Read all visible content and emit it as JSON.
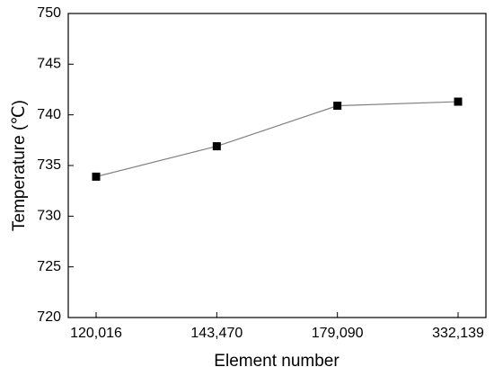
{
  "chart_data": {
    "type": "line",
    "x_label": "Element number",
    "y_label": "Temperature (℃)",
    "categories": [
      "120,016",
      "143,470",
      "179,090",
      "332,139"
    ],
    "series": [
      {
        "values": [
          733.9,
          736.9,
          740.9,
          741.3
        ],
        "color": "#000000",
        "line_color": "#808080"
      }
    ],
    "ylim": [
      720,
      750
    ],
    "yticks": [
      720,
      725,
      730,
      735,
      740,
      745,
      750
    ],
    "grid": false
  }
}
